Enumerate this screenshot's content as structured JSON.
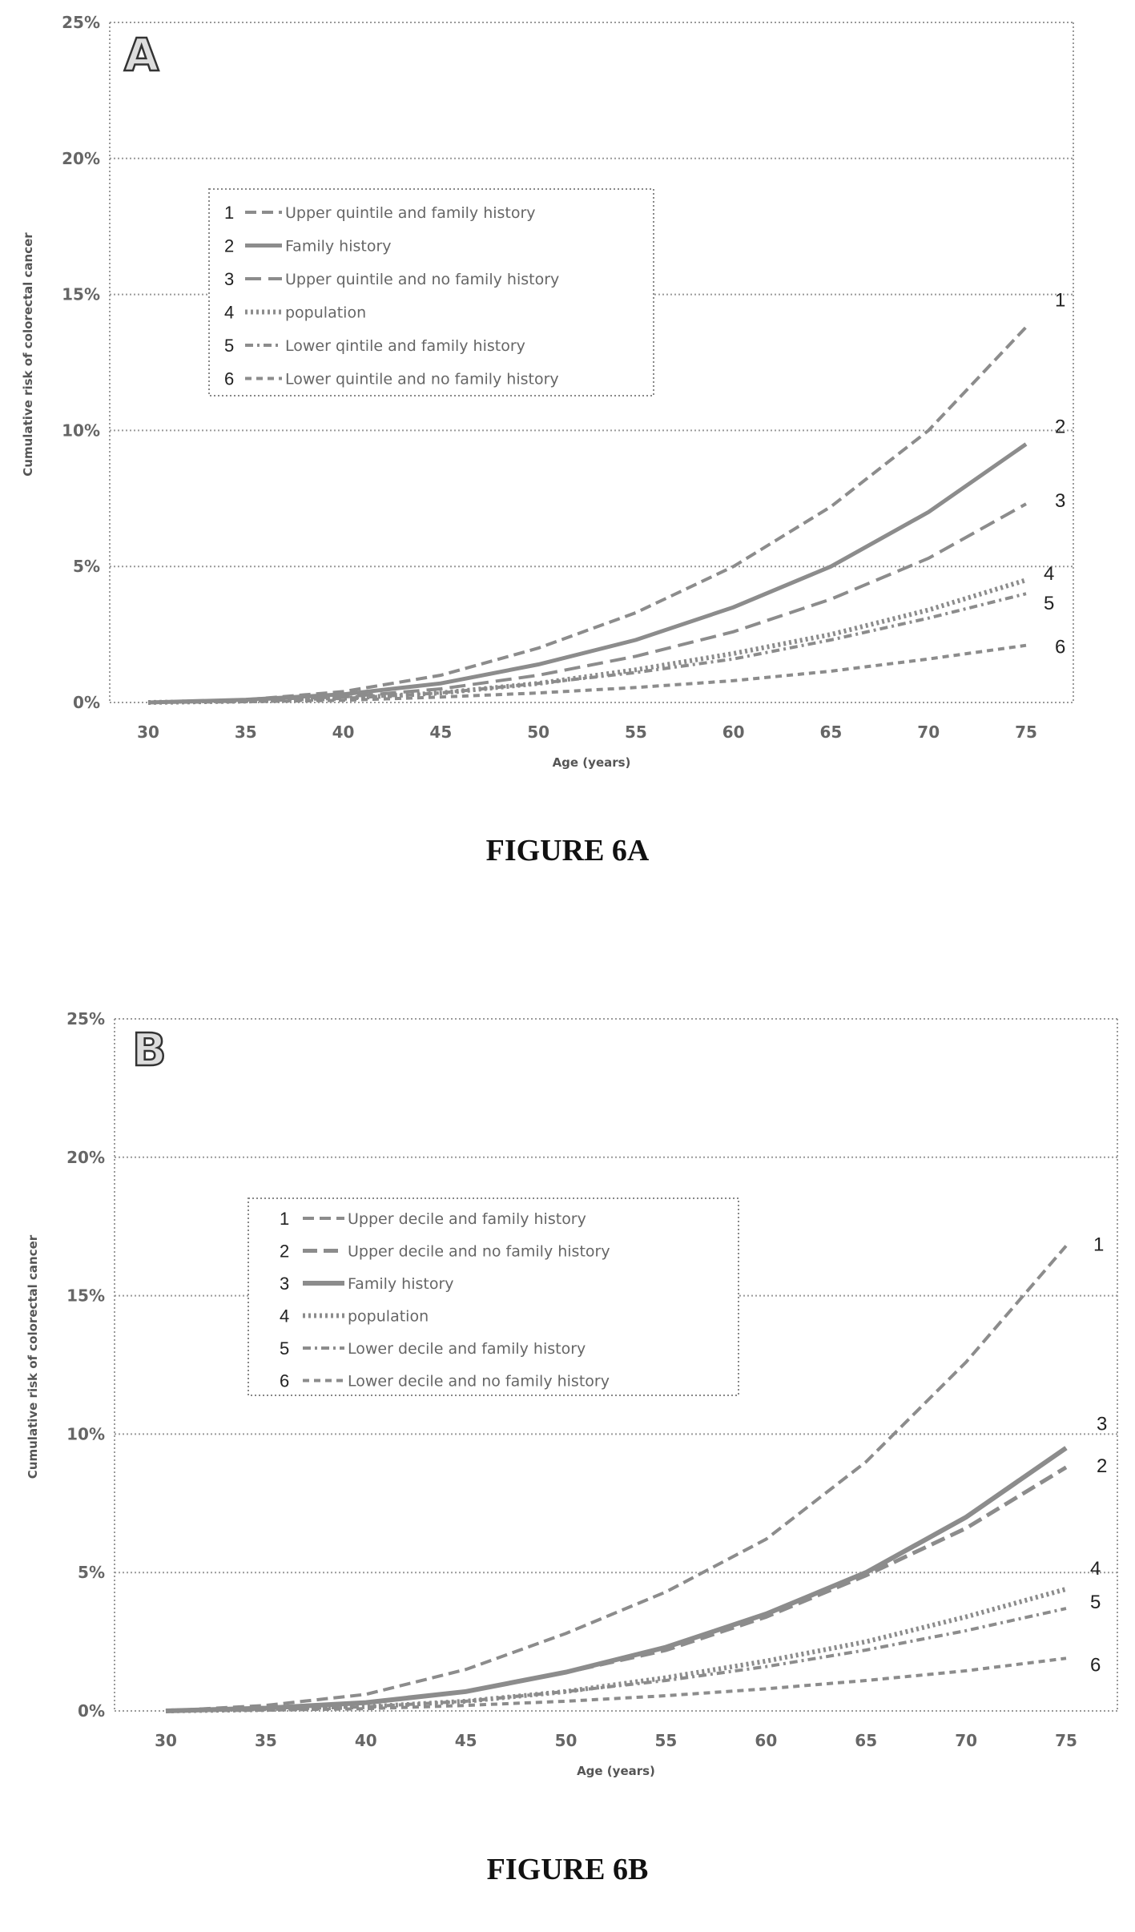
{
  "captions": [
    "FIGURE 6A",
    "FIGURE 6B"
  ],
  "chart_data": [
    {
      "panel": "A",
      "type": "line",
      "title": "",
      "xlabel": "Age (years)",
      "ylabel": "Cumulative risk of colorectal cancer",
      "x": [
        30,
        35,
        40,
        45,
        50,
        55,
        60,
        65,
        70,
        75
      ],
      "xticks": [
        "30",
        "35",
        "40",
        "45",
        "50",
        "55",
        "60",
        "65",
        "70",
        "75"
      ],
      "yticks": [
        "0%",
        "5%",
        "10%",
        "15%",
        "20%",
        "25%"
      ],
      "ylim": [
        0,
        25
      ],
      "grid": true,
      "legend_position": "upper-left",
      "series": [
        {
          "id": "1",
          "name": "Upper quintile and family history",
          "values": [
            0.0,
            0.1,
            0.4,
            1.0,
            2.0,
            3.3,
            5.0,
            7.2,
            10.0,
            13.8
          ],
          "dash": "14 7",
          "width": 4
        },
        {
          "id": "2",
          "name": "Family history",
          "values": [
            0.0,
            0.1,
            0.3,
            0.7,
            1.4,
            2.3,
            3.5,
            5.0,
            7.0,
            9.5
          ],
          "dash": "none",
          "width": 5
        },
        {
          "id": "3",
          "name": "Upper quintile and no family history",
          "values": [
            0.0,
            0.1,
            0.2,
            0.5,
            1.0,
            1.7,
            2.6,
            3.8,
            5.3,
            7.3
          ],
          "dash": "20 9",
          "width": 4
        },
        {
          "id": "4",
          "name": "population",
          "values": [
            0.0,
            0.05,
            0.15,
            0.35,
            0.7,
            1.2,
            1.8,
            2.5,
            3.4,
            4.5
          ],
          "dash": "3 4",
          "width": 6
        },
        {
          "id": "5",
          "name": "Lower qintile and family history",
          "values": [
            0.0,
            0.05,
            0.15,
            0.35,
            0.7,
            1.1,
            1.6,
            2.3,
            3.1,
            4.0
          ],
          "dash": "10 5 3 5",
          "width": 4
        },
        {
          "id": "6",
          "name": "Lower quintile and no family history",
          "values": [
            0.0,
            0.03,
            0.08,
            0.2,
            0.35,
            0.55,
            0.8,
            1.15,
            1.6,
            2.1
          ],
          "dash": "8 6",
          "width": 4
        }
      ]
    },
    {
      "panel": "B",
      "type": "line",
      "title": "",
      "xlabel": "Age (years)",
      "ylabel": "Cumulative risk of colorectal cancer",
      "x": [
        30,
        35,
        40,
        45,
        50,
        55,
        60,
        65,
        70,
        75
      ],
      "xticks": [
        "30",
        "35",
        "40",
        "45",
        "50",
        "55",
        "60",
        "65",
        "70",
        "75"
      ],
      "yticks": [
        "0%",
        "5%",
        "10%",
        "15%",
        "20%",
        "25%"
      ],
      "ylim": [
        0,
        25
      ],
      "grid": true,
      "legend_position": "upper-left",
      "series": [
        {
          "id": "1",
          "name": "Upper decile and family history",
          "values": [
            0.0,
            0.2,
            0.6,
            1.5,
            2.8,
            4.3,
            6.2,
            9.0,
            12.6,
            16.8
          ],
          "dash": "14 7",
          "width": 4
        },
        {
          "id": "2",
          "name": "Upper decile and no family history",
          "values": [
            0.0,
            0.1,
            0.3,
            0.7,
            1.4,
            2.2,
            3.4,
            4.9,
            6.6,
            8.8
          ],
          "dash": "18 8",
          "width": 5
        },
        {
          "id": "3",
          "name": "Family history",
          "values": [
            0.0,
            0.1,
            0.3,
            0.7,
            1.4,
            2.3,
            3.5,
            5.0,
            7.0,
            9.5
          ],
          "dash": "none",
          "width": 6
        },
        {
          "id": "4",
          "name": "population",
          "values": [
            0.0,
            0.05,
            0.15,
            0.35,
            0.7,
            1.2,
            1.8,
            2.5,
            3.4,
            4.4
          ],
          "dash": "3 4",
          "width": 6
        },
        {
          "id": "5",
          "name": "Lower decile and family history",
          "values": [
            0.0,
            0.05,
            0.15,
            0.35,
            0.7,
            1.1,
            1.6,
            2.2,
            2.9,
            3.7
          ],
          "dash": "10 5 3 5",
          "width": 4
        },
        {
          "id": "6",
          "name": "Lower decile and no family history",
          "values": [
            0.0,
            0.03,
            0.08,
            0.2,
            0.35,
            0.55,
            0.8,
            1.1,
            1.45,
            1.9
          ],
          "dash": "8 6",
          "width": 4
        }
      ]
    }
  ]
}
